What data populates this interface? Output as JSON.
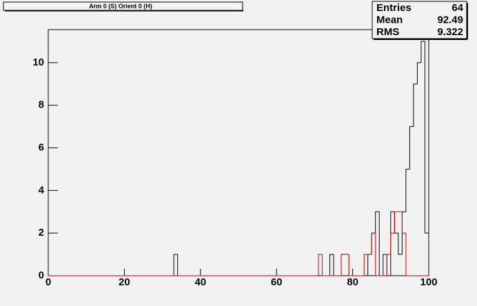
{
  "chart_data": {
    "type": "histogram",
    "title": "Arm 0 (S) Orient 0 (H)",
    "stats": {
      "labels": [
        "Entries",
        "Mean",
        "RMS"
      ],
      "values": [
        64,
        92.49,
        9.322
      ],
      "value_labels": [
        "64",
        "92.49",
        "9.322"
      ]
    },
    "bins": [
      0,
      1,
      2,
      3,
      4,
      5,
      6,
      7,
      8,
      9,
      10,
      11,
      12,
      13,
      14,
      15,
      16,
      17,
      18,
      19,
      20,
      21,
      22,
      23,
      24,
      25,
      26,
      27,
      28,
      29,
      30,
      31,
      32,
      33,
      34,
      35,
      36,
      37,
      38,
      39,
      40,
      41,
      42,
      43,
      44,
      45,
      46,
      47,
      48,
      49,
      50,
      51,
      52,
      53,
      54,
      55,
      56,
      57,
      58,
      59,
      60,
      61,
      62,
      63,
      64,
      65,
      66,
      67,
      68,
      69,
      70,
      71,
      72,
      73,
      74,
      75,
      76,
      77,
      78,
      79,
      80,
      81,
      82,
      83,
      84,
      85,
      86,
      87,
      88,
      89,
      90,
      91,
      92,
      93,
      94,
      95,
      96,
      97,
      98,
      99,
      100
    ],
    "series": [
      {
        "color": "#000000",
        "values": [
          0,
          0,
          0,
          0,
          0,
          0,
          0,
          0,
          0,
          0,
          0,
          0,
          0,
          0,
          0,
          0,
          0,
          0,
          0,
          0,
          0,
          0,
          0,
          0,
          0,
          0,
          0,
          0,
          0,
          0,
          0,
          0,
          0,
          1,
          0,
          0,
          0,
          0,
          0,
          0,
          0,
          0,
          0,
          0,
          0,
          0,
          0,
          0,
          0,
          0,
          0,
          0,
          0,
          0,
          0,
          0,
          0,
          0,
          0,
          0,
          0,
          0,
          0,
          0,
          0,
          0,
          0,
          0,
          0,
          0,
          0,
          0,
          0,
          0,
          1,
          0,
          0,
          1,
          1,
          0,
          0,
          0,
          0,
          0,
          1,
          2,
          3,
          0,
          1,
          0,
          3,
          2,
          1,
          3,
          5,
          7,
          9,
          10,
          11,
          2
        ]
      },
      {
        "color": "#e00000",
        "values": [
          0,
          0,
          0,
          0,
          0,
          0,
          0,
          0,
          0,
          0,
          0,
          0,
          0,
          0,
          0,
          0,
          0,
          0,
          0,
          0,
          0,
          0,
          0,
          0,
          0,
          0,
          0,
          0,
          0,
          0,
          0,
          0,
          0,
          0,
          0,
          0,
          0,
          0,
          0,
          0,
          0,
          0,
          0,
          0,
          0,
          0,
          0,
          0,
          0,
          0,
          0,
          0,
          0,
          0,
          0,
          0,
          0,
          0,
          0,
          0,
          0,
          0,
          0,
          0,
          0,
          0,
          0,
          0,
          0,
          0,
          0,
          1,
          0,
          0,
          0,
          0,
          0,
          1,
          1,
          0,
          0,
          0,
          0,
          1,
          1,
          2,
          0,
          0,
          0,
          1,
          2,
          3,
          3,
          2,
          0,
          0,
          0,
          0,
          0,
          0
        ]
      }
    ],
    "xlim": [
      0,
      100
    ],
    "xticks": [
      0,
      20,
      40,
      60,
      80,
      100
    ],
    "ylim": [
      0,
      11.55
    ],
    "yticks": [
      0,
      2,
      4,
      6,
      8,
      10
    ]
  }
}
